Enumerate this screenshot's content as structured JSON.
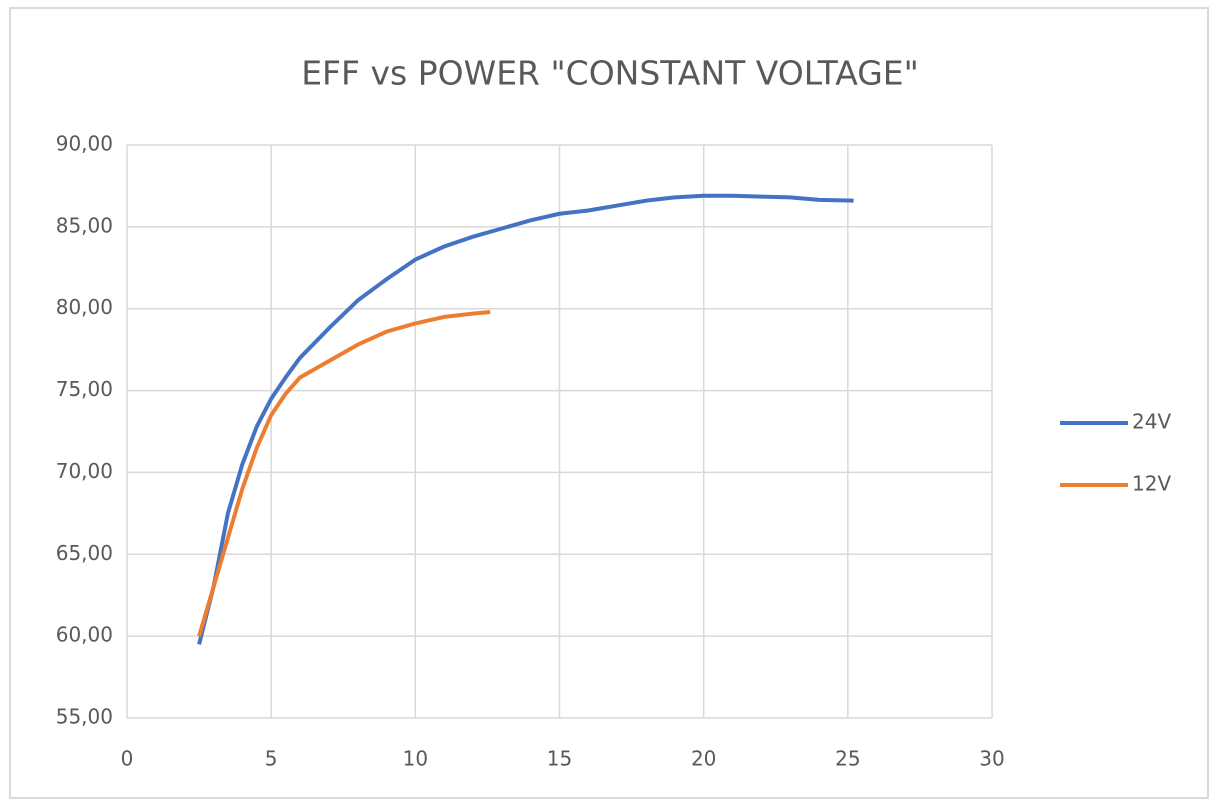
{
  "chart_data": {
    "type": "line",
    "title": "EFF vs POWER \"CONSTANT VOLTAGE\"",
    "xlim": [
      0,
      30
    ],
    "xticks": [
      0,
      5,
      10,
      15,
      20,
      25,
      30
    ],
    "ylim": [
      55,
      90
    ],
    "yticks": [
      {
        "value": 55,
        "label": "55,00"
      },
      {
        "value": 60,
        "label": "60,00"
      },
      {
        "value": 65,
        "label": "65,00"
      },
      {
        "value": 70,
        "label": "70,00"
      },
      {
        "value": 75,
        "label": "75,00"
      },
      {
        "value": 80,
        "label": "80,00"
      },
      {
        "value": 85,
        "label": "85,00"
      },
      {
        "value": 90,
        "label": "90,00"
      }
    ],
    "grid": true,
    "legend": "right",
    "series": [
      {
        "name": "24V",
        "color": "#4472c4",
        "x": [
          2.5,
          3,
          3.5,
          4,
          4.5,
          5,
          5.5,
          6,
          7,
          8,
          9,
          10,
          11,
          12,
          13,
          14,
          15,
          16,
          17,
          18,
          19,
          20,
          21,
          22,
          23,
          24,
          25.2
        ],
        "values": [
          59.5,
          63,
          67.5,
          70.5,
          72.8,
          74.5,
          75.8,
          77,
          78.8,
          80.5,
          81.8,
          83,
          83.8,
          84.4,
          84.9,
          85.4,
          85.8,
          86,
          86.3,
          86.6,
          86.8,
          86.9,
          86.9,
          86.85,
          86.8,
          86.65,
          86.6
        ]
      },
      {
        "name": "12V",
        "color": "#ed7d31",
        "x": [
          2.5,
          3,
          3.5,
          4,
          4.5,
          5,
          5.5,
          6,
          7,
          8,
          9,
          10,
          11,
          12,
          12.6
        ],
        "values": [
          60,
          63,
          66,
          69,
          71.5,
          73.5,
          74.8,
          75.8,
          76.8,
          77.8,
          78.6,
          79.1,
          79.5,
          79.7,
          79.8
        ]
      }
    ]
  }
}
